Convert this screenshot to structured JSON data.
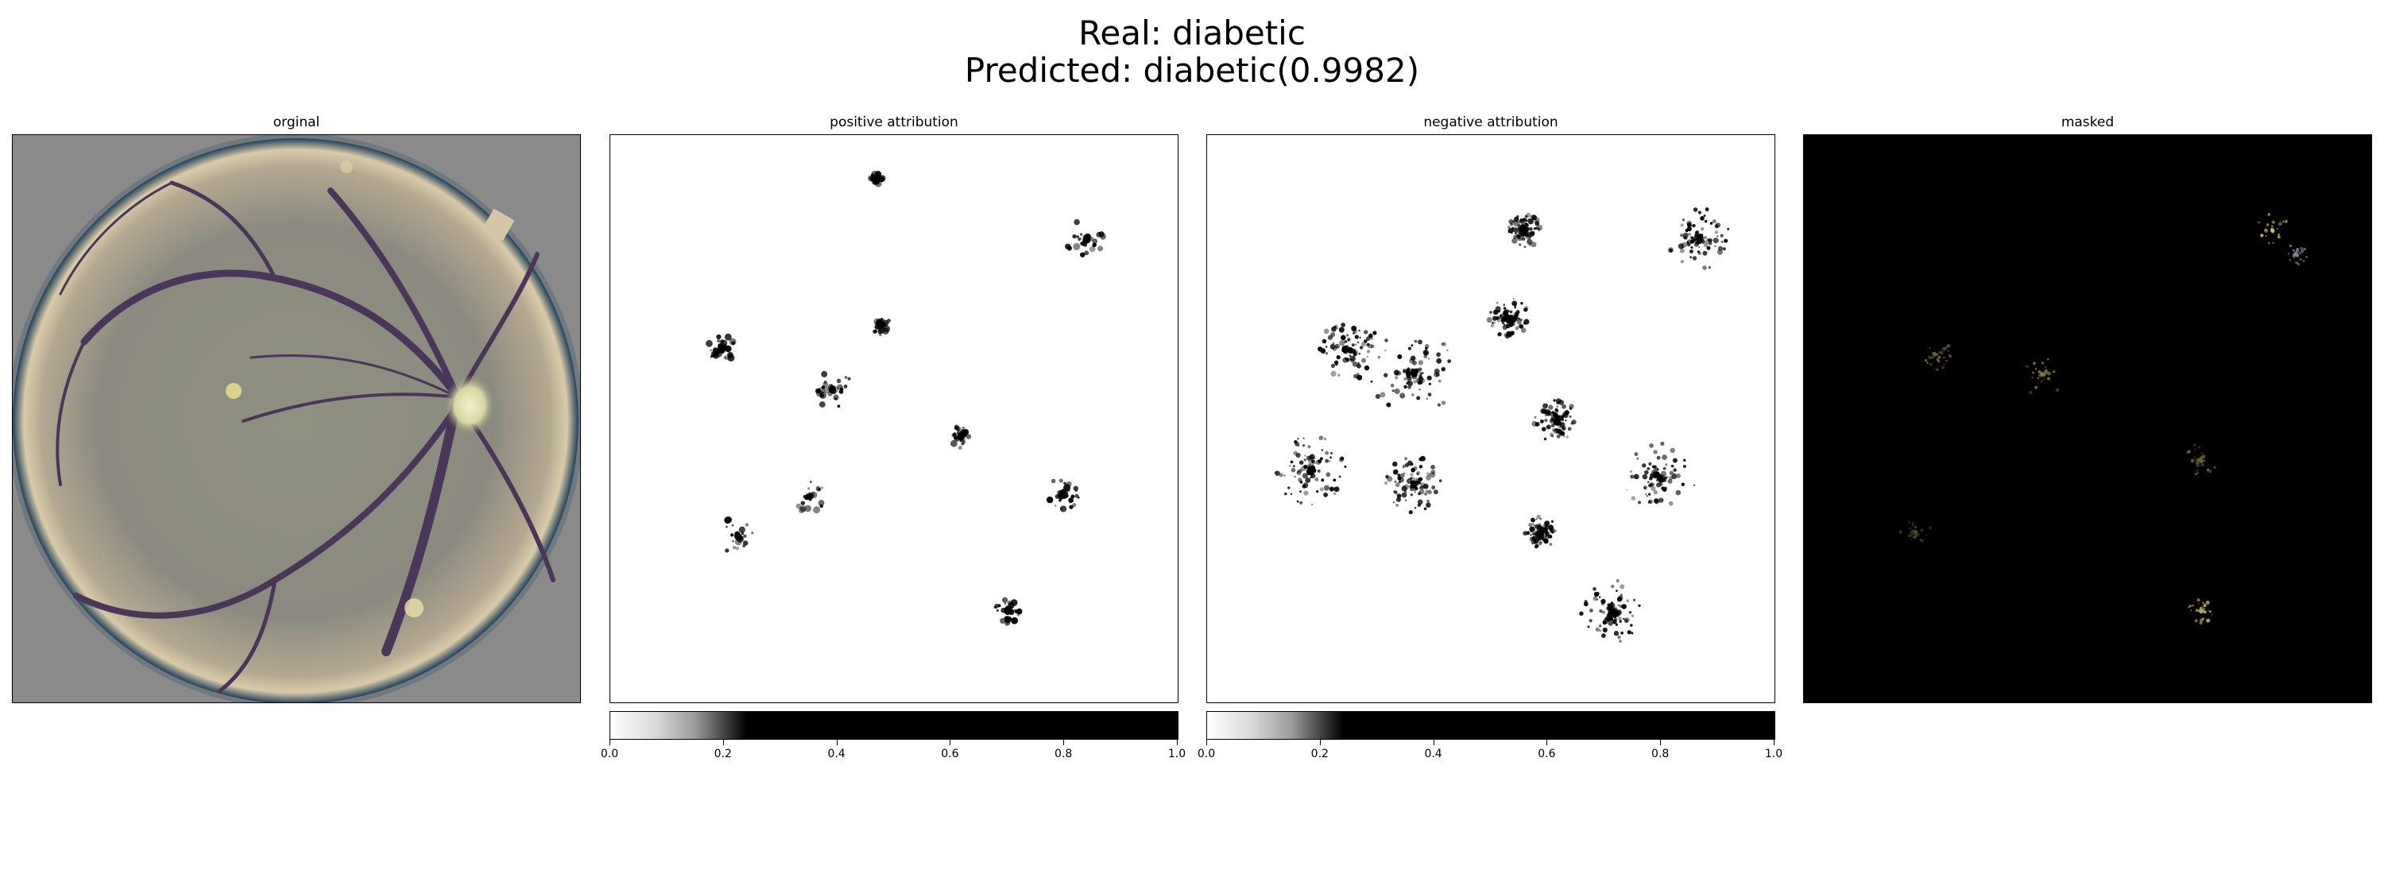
{
  "figure": {
    "suptitle_line1": "Real: diabetic",
    "suptitle_line2": "Predicted: diabetic(0.9982)"
  },
  "panels": [
    {
      "title": "orginal"
    },
    {
      "title": "positive attribution"
    },
    {
      "title": "negative attribution"
    },
    {
      "title": "masked"
    }
  ],
  "colorbar": {
    "ticks": [
      "0.0",
      "0.2",
      "0.4",
      "0.6",
      "0.8",
      "1.0"
    ],
    "range": [
      0.0,
      1.0
    ],
    "colormap": "gray_r"
  },
  "colors": {
    "fundus_background": "#8a8a8a",
    "fundus_rim": "#2a4860",
    "vessel": "#4a3658",
    "optic_disc": "#e6e6b4"
  }
}
